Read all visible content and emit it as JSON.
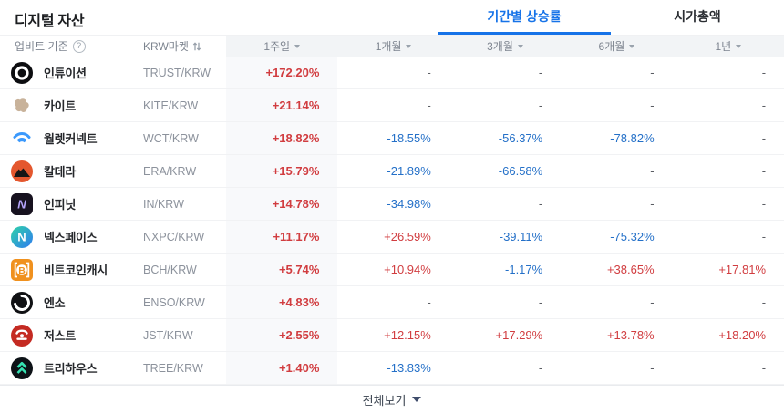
{
  "page": {
    "title": "디지털 자산",
    "tabs": [
      {
        "label": "기간별 상승률",
        "active": true
      },
      {
        "label": "시가총액",
        "active": false
      }
    ],
    "view_all_label": "전체보기"
  },
  "table": {
    "header": {
      "basis_label": "업비트 기준",
      "help_icon": "question-circle-icon",
      "market_label": "KRW마켓",
      "sort_icon": "sort-arrows-icon",
      "periods": [
        "1주일",
        "1개월",
        "3개월",
        "6개월",
        "1년"
      ]
    },
    "rows": [
      {
        "name": "인튜이션",
        "pair": "TRUST/KRW",
        "icon": "trust",
        "values": [
          "+172.20%",
          "-",
          "-",
          "-",
          "-"
        ]
      },
      {
        "name": "카이트",
        "pair": "KITE/KRW",
        "icon": "kite",
        "values": [
          "+21.14%",
          "-",
          "-",
          "-",
          "-"
        ]
      },
      {
        "name": "월렛커넥트",
        "pair": "WCT/KRW",
        "icon": "wct",
        "values": [
          "+18.82%",
          "-18.55%",
          "-56.37%",
          "-78.82%",
          "-"
        ]
      },
      {
        "name": "칼데라",
        "pair": "ERA/KRW",
        "icon": "era",
        "values": [
          "+15.79%",
          "-21.89%",
          "-66.58%",
          "-",
          "-"
        ]
      },
      {
        "name": "인피닛",
        "pair": "IN/KRW",
        "icon": "infinit",
        "values": [
          "+14.78%",
          "-34.98%",
          "-",
          "-",
          "-"
        ]
      },
      {
        "name": "넥스페이스",
        "pair": "NXPC/KRW",
        "icon": "nxpc",
        "values": [
          "+11.17%",
          "+26.59%",
          "-39.11%",
          "-75.32%",
          "-"
        ]
      },
      {
        "name": "비트코인캐시",
        "pair": "BCH/KRW",
        "icon": "bch",
        "values": [
          "+5.74%",
          "+10.94%",
          "-1.17%",
          "+38.65%",
          "+17.81%"
        ]
      },
      {
        "name": "엔소",
        "pair": "ENSO/KRW",
        "icon": "enso",
        "values": [
          "+4.83%",
          "-",
          "-",
          "-",
          "-"
        ]
      },
      {
        "name": "저스트",
        "pair": "JST/KRW",
        "icon": "jst",
        "values": [
          "+2.55%",
          "+12.15%",
          "+17.29%",
          "+13.78%",
          "+18.20%"
        ]
      },
      {
        "name": "트리하우스",
        "pair": "TREE/KRW",
        "icon": "tree",
        "values": [
          "+1.40%",
          "-13.83%",
          "-",
          "-",
          "-"
        ]
      }
    ]
  },
  "colors": {
    "positive": "#d13d40",
    "negative": "#2470c8",
    "accent": "#1673e8",
    "period_column_bg": "#f8f9fb"
  }
}
